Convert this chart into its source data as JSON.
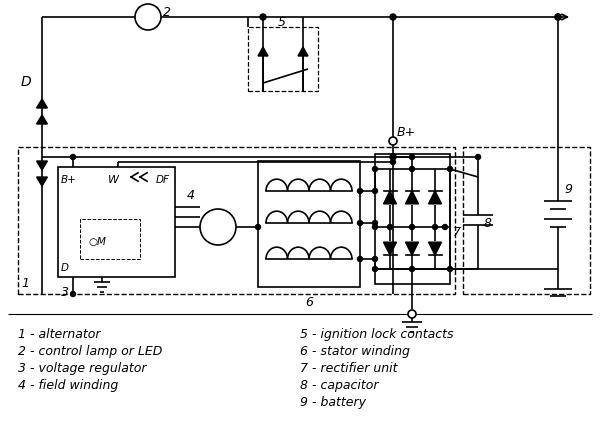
{
  "fig_width": 6.0,
  "fig_height": 4.27,
  "dpi": 100,
  "bg_color": "#ffffff",
  "line_color": "#000000",
  "lw": 1.2,
  "legend_left": [
    "1 - alternator",
    "2 - control lamp or LED",
    "3 - voltage regulator",
    "4 - field winding"
  ],
  "legend_right": [
    "5 - ignition lock contacts",
    "6 - stator winding",
    "7 - rectifier unit",
    "8 - capacitor",
    "9 - battery"
  ]
}
